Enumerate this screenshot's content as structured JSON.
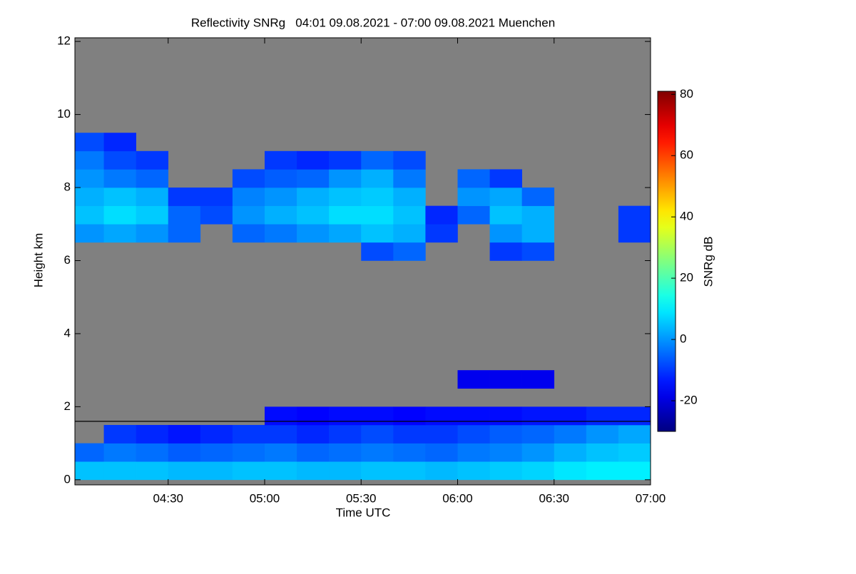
{
  "chart_data": {
    "type": "heatmap",
    "title": "Reflectivity SNRg   04:01 09.08.2021 - 07:00 09.08.2021 Muenchen",
    "x_label": "Time UTC",
    "y_label": "Height km",
    "colorbar_label": "SNRg dB",
    "xlim": [
      "04:01",
      "07:00"
    ],
    "xticks": [
      "04:30",
      "05:00",
      "05:30",
      "06:00",
      "06:30",
      "07:00"
    ],
    "ylim": [
      -0.14,
      12.1
    ],
    "yticks": [
      0,
      2,
      4,
      6,
      8,
      10,
      12
    ],
    "zlim": [
      -30,
      81
    ],
    "zticks": [
      -20,
      0,
      20,
      40,
      60,
      80
    ],
    "colormap": "jet",
    "background": "#808080",
    "hline": 1.6,
    "xbins": [
      "04:01",
      "04:10",
      "04:20",
      "04:30",
      "04:40",
      "04:50",
      "05:00",
      "05:10",
      "05:20",
      "05:30",
      "05:40",
      "05:50",
      "06:00",
      "06:10",
      "06:20",
      "06:30",
      "06:40",
      "06:50",
      "07:00"
    ],
    "ybins": [
      0,
      0.5,
      1,
      1.5,
      2,
      2.5,
      3,
      3.5,
      4,
      4.5,
      5,
      5.5,
      6,
      6.5,
      7,
      7.5,
      8,
      8.5,
      9,
      9.5
    ],
    "z": [
      [
        5,
        5,
        5,
        4,
        4,
        5,
        5,
        4,
        4,
        5,
        5,
        4,
        5,
        6,
        7,
        9,
        10,
        10
      ],
      [
        -5,
        -3,
        -4,
        -6,
        -5,
        -4,
        -3,
        -5,
        -4,
        -3,
        -4,
        -5,
        -3,
        -2,
        0,
        3,
        5,
        6
      ],
      [
        null,
        -10,
        -12,
        -14,
        -12,
        -10,
        -10,
        -12,
        -10,
        -8,
        -10,
        -10,
        -8,
        -6,
        -5,
        -3,
        0,
        2
      ],
      [
        null,
        null,
        null,
        null,
        null,
        null,
        -15,
        -16,
        -15,
        -15,
        -16,
        -15,
        -15,
        -15,
        -14,
        -14,
        -12,
        -12
      ],
      [
        null,
        null,
        null,
        null,
        null,
        null,
        null,
        null,
        null,
        null,
        null,
        null,
        null,
        null,
        null,
        null,
        null,
        null
      ],
      [
        null,
        null,
        null,
        null,
        null,
        null,
        null,
        null,
        null,
        null,
        null,
        null,
        -18,
        -18,
        -18,
        null,
        null,
        null
      ],
      [
        null,
        null,
        null,
        null,
        null,
        null,
        null,
        null,
        null,
        null,
        null,
        null,
        null,
        null,
        null,
        null,
        null,
        null
      ],
      [
        null,
        null,
        null,
        null,
        null,
        null,
        null,
        null,
        null,
        null,
        null,
        null,
        null,
        null,
        null,
        null,
        null,
        null
      ],
      [
        null,
        null,
        null,
        null,
        null,
        null,
        null,
        null,
        null,
        null,
        null,
        null,
        null,
        null,
        null,
        null,
        null,
        null
      ],
      [
        null,
        null,
        null,
        null,
        null,
        null,
        null,
        null,
        null,
        null,
        null,
        null,
        null,
        null,
        null,
        null,
        null,
        null
      ],
      [
        null,
        null,
        null,
        null,
        null,
        null,
        null,
        null,
        null,
        null,
        null,
        null,
        null,
        null,
        null,
        null,
        null,
        null
      ],
      [
        null,
        null,
        null,
        null,
        null,
        null,
        null,
        null,
        null,
        null,
        null,
        null,
        null,
        null,
        null,
        null,
        null,
        null
      ],
      [
        null,
        null,
        null,
        null,
        null,
        null,
        null,
        null,
        null,
        -8,
        -5,
        null,
        null,
        -10,
        -8,
        null,
        null,
        null
      ],
      [
        0,
        2,
        0,
        -5,
        null,
        -5,
        -3,
        0,
        2,
        5,
        3,
        -10,
        null,
        0,
        3,
        null,
        null,
        -10
      ],
      [
        5,
        8,
        6,
        -5,
        -8,
        0,
        3,
        5,
        8,
        8,
        5,
        -12,
        -5,
        5,
        3,
        null,
        null,
        -10
      ],
      [
        3,
        5,
        3,
        -10,
        -10,
        -2,
        0,
        3,
        5,
        6,
        3,
        null,
        0,
        2,
        -5,
        null,
        null,
        null
      ],
      [
        0,
        -3,
        -5,
        null,
        null,
        -8,
        -6,
        -5,
        0,
        3,
        -3,
        null,
        -5,
        -10,
        null,
        null,
        null,
        null
      ],
      [
        -3,
        -8,
        -10,
        null,
        null,
        null,
        -10,
        -12,
        -10,
        -5,
        -8,
        null,
        null,
        null,
        null,
        null,
        null,
        null
      ],
      [
        -8,
        -12,
        null,
        null,
        null,
        null,
        null,
        null,
        null,
        null,
        null,
        null,
        null,
        null,
        null,
        null,
        null,
        null
      ]
    ]
  }
}
